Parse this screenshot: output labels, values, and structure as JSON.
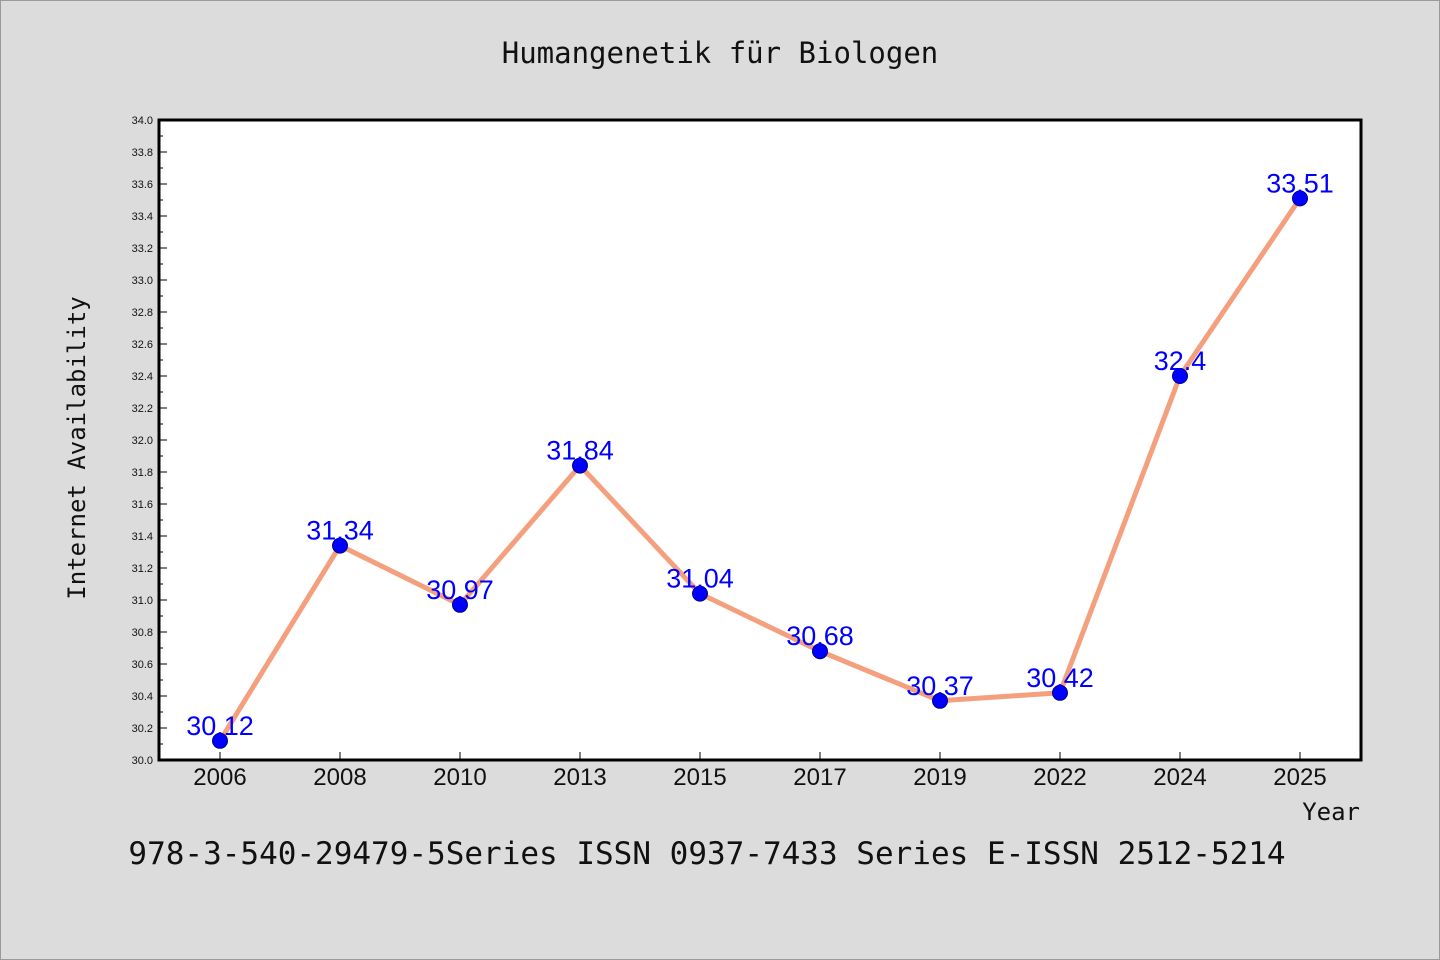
{
  "chart_data": {
    "type": "line",
    "title": "Humangenetik für Biologen",
    "xlabel": "Year",
    "ylabel": "Internet Availability",
    "categories": [
      "2006",
      "2008",
      "2010",
      "2013",
      "2015",
      "2017",
      "2019",
      "2022",
      "2024",
      "2025"
    ],
    "series": [
      {
        "values": [
          30.12,
          31.34,
          30.97,
          31.84,
          31.04,
          30.68,
          30.37,
          30.42,
          32.4,
          33.51
        ],
        "data_labels": [
          "30.12",
          "31.34",
          "30.97",
          "31.84",
          "31.04",
          "30.68",
          "30.37",
          "30.42",
          "32.4",
          "33.51"
        ],
        "line_color": "#f4a07e",
        "marker_color": "#0000ff"
      }
    ],
    "ylim": [
      30.0,
      34.0
    ],
    "yticks": [
      "30.0",
      "30.2",
      "30.4",
      "30.6",
      "30.8",
      "31.0",
      "31.2",
      "31.4",
      "31.6",
      "31.8",
      "32.0",
      "32.2",
      "32.4",
      "32.6",
      "32.8",
      "33.0",
      "33.2",
      "33.4",
      "33.6",
      "33.8",
      "34.0"
    ],
    "grid": false,
    "legend": "none"
  },
  "footer": "978-3-540-29479-5Series ISSN 0937-7433 Series E-ISSN 2512-5214",
  "colors": {
    "background": "#dcdcdc",
    "plot_bg": "#ffffff",
    "line": "#f4a07e",
    "marker": "#0000ff",
    "label": "#0000ff"
  }
}
